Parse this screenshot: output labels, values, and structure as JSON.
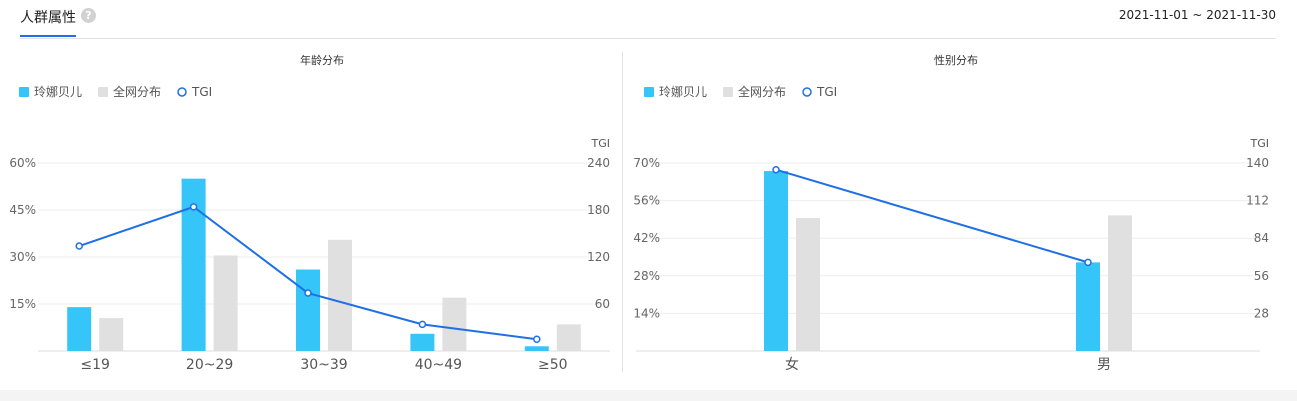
{
  "header": {
    "title": "人群属性",
    "help_icon": "?",
    "date_range": "2021-11-01 ~ 2021-11-30"
  },
  "colors": {
    "brand": "#36c5f8",
    "network": "#e0e0e0",
    "tgi": "#1f6fe5",
    "tab_accent": "#1f6fe5"
  },
  "chart_data": [
    {
      "type": "bar",
      "title": "年龄分布",
      "legend": [
        "玲娜贝儿",
        "全网分布",
        "TGI"
      ],
      "right_axis_label": "TGI",
      "categories": [
        "≤19",
        "20~29",
        "30~39",
        "40~49",
        "≥50"
      ],
      "series": [
        {
          "name": "玲娜贝儿",
          "type": "bar",
          "axis": "left",
          "values": [
            14,
            55,
            26,
            5.5,
            1.5
          ]
        },
        {
          "name": "全网分布",
          "type": "bar",
          "axis": "left",
          "values": [
            10.5,
            30.5,
            35.5,
            17,
            8.5
          ]
        },
        {
          "name": "TGI",
          "type": "line",
          "axis": "right",
          "values": [
            134,
            184,
            74,
            34,
            15
          ]
        }
      ],
      "yticks_left": [
        "60%",
        "45%",
        "30%",
        "15%"
      ],
      "ylim_left": [
        0,
        60
      ],
      "yticks_right": [
        "240",
        "180",
        "120",
        "60"
      ],
      "ylim_right": [
        0,
        240
      ]
    },
    {
      "type": "bar",
      "title": "性别分布",
      "legend": [
        "玲娜贝儿",
        "全网分布",
        "TGI"
      ],
      "right_axis_label": "TGI",
      "categories": [
        "女",
        "男"
      ],
      "series": [
        {
          "name": "玲娜贝儿",
          "type": "bar",
          "axis": "left",
          "values": [
            67,
            33
          ]
        },
        {
          "name": "全网分布",
          "type": "bar",
          "axis": "left",
          "values": [
            49.5,
            50.5
          ]
        },
        {
          "name": "TGI",
          "type": "line",
          "axis": "right",
          "values": [
            135,
            66
          ]
        }
      ],
      "yticks_left": [
        "70%",
        "56%",
        "42%",
        "28%",
        "14%"
      ],
      "ylim_left": [
        0,
        70
      ],
      "yticks_right": [
        "140",
        "112",
        "84",
        "56",
        "28"
      ],
      "ylim_right": [
        0,
        140
      ]
    }
  ]
}
